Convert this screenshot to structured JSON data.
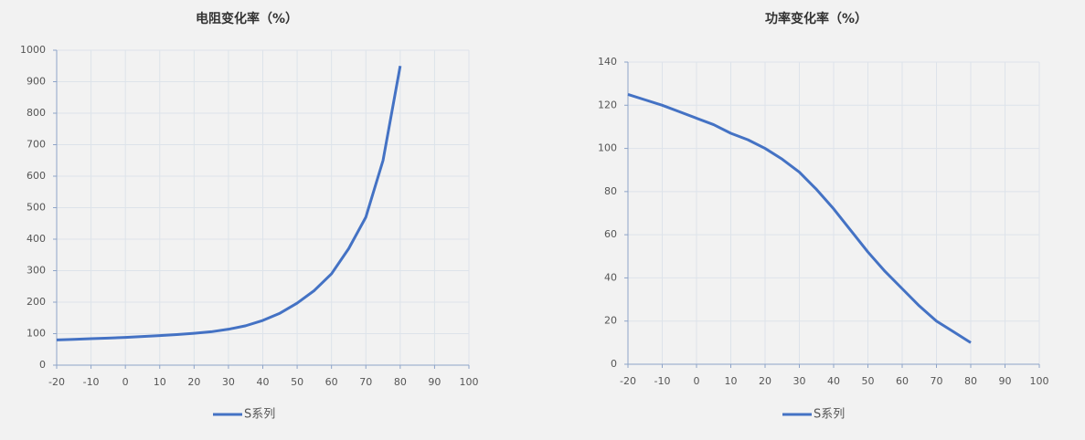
{
  "chart_data": [
    {
      "type": "line",
      "title": "电阻变化率（%）",
      "x": [
        -20,
        -15,
        -10,
        -5,
        0,
        5,
        10,
        15,
        20,
        25,
        30,
        35,
        40,
        45,
        50,
        55,
        60,
        65,
        70,
        75,
        80
      ],
      "series": [
        {
          "name": "S系列",
          "color": "#4472c4",
          "values": [
            80,
            82,
            84,
            86,
            88,
            91,
            94,
            97,
            101,
            106,
            114,
            125,
            142,
            165,
            197,
            237,
            290,
            370,
            470,
            650,
            950
          ]
        }
      ],
      "xlim": [
        -20,
        100
      ],
      "xticks": [
        -20,
        -10,
        0,
        10,
        20,
        30,
        40,
        50,
        60,
        70,
        80,
        90,
        100
      ],
      "ylim": [
        0,
        1000
      ],
      "yticks": [
        0,
        100,
        200,
        300,
        400,
        500,
        600,
        700,
        800,
        900,
        1000
      ],
      "grid": true
    },
    {
      "type": "line",
      "title": "功率变化率（%）",
      "x": [
        -20,
        -15,
        -10,
        -5,
        0,
        5,
        10,
        15,
        20,
        25,
        30,
        35,
        40,
        45,
        50,
        55,
        60,
        65,
        70,
        75,
        80
      ],
      "series": [
        {
          "name": "S系列",
          "color": "#4472c4",
          "values": [
            125,
            122.5,
            120,
            117,
            114,
            111,
            107,
            104,
            100,
            95,
            89,
            81,
            72,
            62,
            52,
            43,
            35,
            27,
            20,
            15,
            10
          ]
        }
      ],
      "xlim": [
        -20,
        100
      ],
      "xticks": [
        -20,
        -10,
        0,
        10,
        20,
        30,
        40,
        50,
        60,
        70,
        80,
        90,
        100
      ],
      "ylim": [
        0,
        140
      ],
      "yticks": [
        0,
        20,
        40,
        60,
        80,
        100,
        120,
        140
      ],
      "grid": true
    }
  ]
}
